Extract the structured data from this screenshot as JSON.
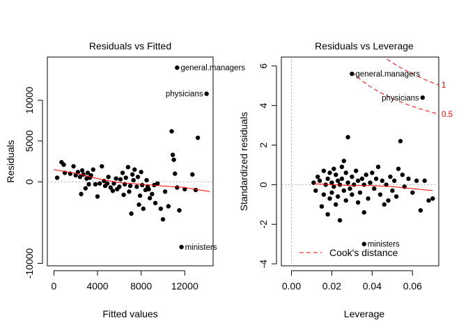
{
  "chart_data": [
    {
      "type": "scatter",
      "title": "Residuals vs Fitted",
      "xlabel": "Fitted values",
      "ylabel": "Residuals",
      "xlim": [
        -600,
        14600
      ],
      "ylim": [
        -10300,
        15300
      ],
      "xticks": [
        0,
        4000,
        8000,
        12000
      ],
      "xtick_labels": [
        "0",
        "4000",
        "8000",
        "12000"
      ],
      "yticks": [
        -10000,
        0,
        5000,
        10000
      ],
      "ytick_labels": [
        "-10000",
        "0",
        "5000",
        "10000"
      ],
      "refline_y": 0,
      "points": [
        [
          300,
          500
        ],
        [
          700,
          2400
        ],
        [
          900,
          2100
        ],
        [
          1000,
          1100
        ],
        [
          1500,
          1000
        ],
        [
          1800,
          1900
        ],
        [
          2000,
          800
        ],
        [
          2200,
          1200
        ],
        [
          2400,
          600
        ],
        [
          2500,
          -1500
        ],
        [
          2600,
          1400
        ],
        [
          2700,
          900
        ],
        [
          2900,
          -800
        ],
        [
          3000,
          400
        ],
        [
          3100,
          1100
        ],
        [
          3200,
          -300
        ],
        [
          3300,
          500
        ],
        [
          3400,
          800
        ],
        [
          3600,
          1500
        ],
        [
          3800,
          -300
        ],
        [
          4000,
          -1800
        ],
        [
          4200,
          -200
        ],
        [
          4400,
          1900
        ],
        [
          4600,
          100
        ],
        [
          4700,
          -500
        ],
        [
          4900,
          -200
        ],
        [
          5000,
          600
        ],
        [
          5200,
          -700
        ],
        [
          5400,
          -1100
        ],
        [
          5500,
          -200
        ],
        [
          5700,
          400
        ],
        [
          5800,
          -900
        ],
        [
          6000,
          -600
        ],
        [
          6100,
          300
        ],
        [
          6300,
          1100
        ],
        [
          6400,
          -1600
        ],
        [
          6500,
          -300
        ],
        [
          6600,
          500
        ],
        [
          6800,
          1800
        ],
        [
          6900,
          -1200
        ],
        [
          7000,
          -500
        ],
        [
          7100,
          -3900
        ],
        [
          7200,
          900
        ],
        [
          7300,
          200
        ],
        [
          7400,
          1500
        ],
        [
          7600,
          -600
        ],
        [
          7700,
          600
        ],
        [
          7800,
          -2800
        ],
        [
          7900,
          -1700
        ],
        [
          8000,
          1200
        ],
        [
          8100,
          -400
        ],
        [
          8200,
          -3300
        ],
        [
          8400,
          -1000
        ],
        [
          8500,
          200
        ],
        [
          8600,
          -600
        ],
        [
          8700,
          -900
        ],
        [
          8800,
          -2000
        ],
        [
          9000,
          -1500
        ],
        [
          9200,
          -400
        ],
        [
          9300,
          -2600
        ],
        [
          9500,
          -200
        ],
        [
          9800,
          -3300
        ],
        [
          10000,
          -4600
        ],
        [
          10200,
          -1200
        ],
        [
          10500,
          -3000
        ],
        [
          10800,
          6200
        ],
        [
          10900,
          3300
        ],
        [
          11000,
          2700
        ],
        [
          11100,
          1000
        ],
        [
          11300,
          -700
        ],
        [
          11500,
          -3500
        ],
        [
          11700,
          -8000
        ],
        [
          12000,
          -900
        ],
        [
          12700,
          900
        ],
        [
          13000,
          -1000
        ],
        [
          13200,
          5400
        ],
        [
          11300,
          14000
        ],
        [
          14000,
          10800
        ]
      ],
      "smooth": [
        [
          0,
          1500
        ],
        [
          2000,
          1050
        ],
        [
          4000,
          400
        ],
        [
          6000,
          -100
        ],
        [
          8000,
          -300
        ],
        [
          10000,
          -500
        ],
        [
          12000,
          -700
        ],
        [
          14300,
          -1200
        ]
      ],
      "labels": [
        {
          "text": "general.managers",
          "x": 11300,
          "y": 14000,
          "side": "right"
        },
        {
          "text": "physicians",
          "x": 14000,
          "y": 10800,
          "side": "left"
        },
        {
          "text": "ministers",
          "x": 11700,
          "y": -8000,
          "side": "right"
        }
      ]
    },
    {
      "type": "scatter",
      "title": "Residuals vs Leverage",
      "xlabel": "Leverage",
      "ylabel": "Standardized residuals",
      "xlim": [
        -0.005,
        0.073
      ],
      "ylim": [
        -4.1,
        6.45
      ],
      "xticks": [
        0,
        0.02,
        0.04,
        0.06
      ],
      "xtick_labels": [
        "0.00",
        "0.02",
        "0.04",
        "0.06"
      ],
      "yticks": [
        -4,
        -2,
        0,
        2,
        4,
        6
      ],
      "ytick_labels": [
        "-4",
        "-2",
        "0",
        "2",
        "4",
        "6"
      ],
      "refline_y": 0,
      "refline_x": 0,
      "points": [
        [
          0.011,
          0.1
        ],
        [
          0.012,
          -0.3
        ],
        [
          0.013,
          0.4
        ],
        [
          0.014,
          0.2
        ],
        [
          0.015,
          -1.1
        ],
        [
          0.016,
          0.7
        ],
        [
          0.016,
          -0.5
        ],
        [
          0.017,
          0.0
        ],
        [
          0.018,
          -1.5
        ],
        [
          0.018,
          0.3
        ],
        [
          0.019,
          0.6
        ],
        [
          0.019,
          -0.7
        ],
        [
          0.02,
          0.1
        ],
        [
          0.02,
          -0.4
        ],
        [
          0.021,
          0.8
        ],
        [
          0.021,
          -0.1
        ],
        [
          0.022,
          0.5
        ],
        [
          0.022,
          -1.0
        ],
        [
          0.023,
          0.2
        ],
        [
          0.023,
          -0.6
        ],
        [
          0.024,
          -1.8
        ],
        [
          0.024,
          0.0
        ],
        [
          0.025,
          0.3
        ],
        [
          0.025,
          0.9
        ],
        [
          0.026,
          1.2
        ],
        [
          0.026,
          -0.3
        ],
        [
          0.027,
          0.6
        ],
        [
          0.027,
          -0.8
        ],
        [
          0.028,
          0.1
        ],
        [
          0.028,
          2.4
        ],
        [
          0.029,
          -0.2
        ],
        [
          0.03,
          0.4
        ],
        [
          0.03,
          -0.5
        ],
        [
          0.031,
          0.0
        ],
        [
          0.032,
          0.7
        ],
        [
          0.033,
          -0.9
        ],
        [
          0.033,
          0.2
        ],
        [
          0.034,
          -0.4
        ],
        [
          0.035,
          0.3
        ],
        [
          0.036,
          -1.4
        ],
        [
          0.036,
          0.0
        ],
        [
          0.037,
          0.5
        ],
        [
          0.038,
          -0.7
        ],
        [
          0.039,
          0.1
        ],
        [
          0.04,
          0.6
        ],
        [
          0.041,
          -0.2
        ],
        [
          0.042,
          0.3
        ],
        [
          0.043,
          0.9
        ],
        [
          0.044,
          -0.5
        ],
        [
          0.045,
          0.2
        ],
        [
          0.046,
          -1.0
        ],
        [
          0.047,
          0.0
        ],
        [
          0.048,
          -0.8
        ],
        [
          0.049,
          0.4
        ],
        [
          0.05,
          -0.3
        ],
        [
          0.051,
          0.2
        ],
        [
          0.052,
          -0.6
        ],
        [
          0.053,
          0.8
        ],
        [
          0.054,
          2.2
        ],
        [
          0.055,
          0.5
        ],
        [
          0.056,
          -0.1
        ],
        [
          0.058,
          0.3
        ],
        [
          0.06,
          -0.4
        ],
        [
          0.062,
          0.2
        ],
        [
          0.064,
          -1.3
        ],
        [
          0.066,
          0.2
        ],
        [
          0.068,
          -0.8
        ],
        [
          0.07,
          -0.7
        ],
        [
          0.03,
          5.6
        ],
        [
          0.065,
          4.4
        ],
        [
          0.036,
          -3.0
        ]
      ],
      "smooth": [
        [
          0.011,
          0.05
        ],
        [
          0.02,
          0.0
        ],
        [
          0.03,
          -0.05
        ],
        [
          0.04,
          -0.05
        ],
        [
          0.05,
          -0.1
        ],
        [
          0.06,
          -0.2
        ],
        [
          0.07,
          -0.3
        ]
      ],
      "labels": [
        {
          "text": "general.managers",
          "x": 0.03,
          "y": 5.6,
          "side": "right"
        },
        {
          "text": "physicians",
          "x": 0.065,
          "y": 4.4,
          "side": "left"
        },
        {
          "text": "ministers",
          "x": 0.036,
          "y": -3.0,
          "side": "right"
        }
      ],
      "cooks": [
        {
          "label": "1",
          "level": 1
        },
        {
          "label": "0.5",
          "level": 0.5
        }
      ],
      "legend_label": "Cook's distance"
    }
  ]
}
